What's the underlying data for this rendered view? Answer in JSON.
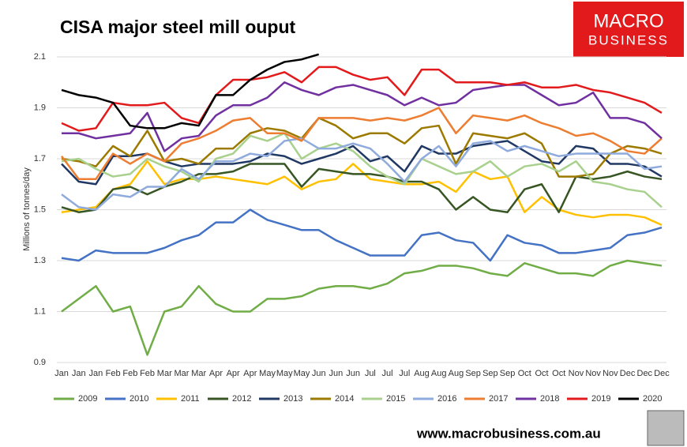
{
  "chart_data": {
    "type": "line",
    "title": "CISA major steel mill ouput",
    "y_label": "Millions of tonnes/day",
    "logo": [
      "MACRO",
      "BUSINESS"
    ],
    "source": "www.macrobusiness.com.au",
    "categories": [
      "Jan",
      "Jan",
      "Jan",
      "Feb",
      "Feb",
      "Feb",
      "Mar",
      "Mar",
      "Mar",
      "Apr",
      "Apr",
      "Apr",
      "May",
      "May",
      "May",
      "Jun",
      "Jun",
      "Jun",
      "Jul",
      "Jul",
      "Jul",
      "Aug",
      "Aug",
      "Aug",
      "Sep",
      "Sep",
      "Sep",
      "Oct",
      "Oct",
      "Oct",
      "Nov",
      "Nov",
      "Nov",
      "Dec",
      "Dec",
      "Dec"
    ],
    "ylim": [
      0.9,
      2.1
    ],
    "yticks": [
      0.9,
      1.1,
      1.3,
      1.5,
      1.7,
      1.9,
      2.1
    ],
    "grid": true,
    "legend": "bottom",
    "series": [
      {
        "name": "2009",
        "color": "#70ad47",
        "values": [
          1.1,
          1.15,
          1.2,
          1.1,
          1.12,
          0.93,
          1.1,
          1.12,
          1.2,
          1.13,
          1.1,
          1.1,
          1.15,
          1.15,
          1.16,
          1.19,
          1.2,
          1.2,
          1.19,
          1.21,
          1.25,
          1.26,
          1.28,
          1.28,
          1.27,
          1.25,
          1.24,
          1.29,
          1.27,
          1.25,
          1.25,
          1.24,
          1.28,
          1.3,
          1.29,
          1.28
        ]
      },
      {
        "name": "2010",
        "color": "#4472c4",
        "values": [
          1.31,
          1.3,
          1.34,
          1.33,
          1.33,
          1.33,
          1.35,
          1.38,
          1.4,
          1.45,
          1.45,
          1.5,
          1.46,
          1.44,
          1.42,
          1.42,
          1.38,
          1.35,
          1.32,
          1.32,
          1.32,
          1.4,
          1.41,
          1.38,
          1.37,
          1.3,
          1.4,
          1.37,
          1.36,
          1.33,
          1.33,
          1.34,
          1.35,
          1.4,
          1.41,
          1.43
        ]
      },
      {
        "name": "2011",
        "color": "#ffc000",
        "values": [
          1.49,
          1.5,
          1.51,
          1.58,
          1.6,
          1.69,
          1.6,
          1.62,
          1.62,
          1.63,
          1.62,
          1.61,
          1.6,
          1.63,
          1.58,
          1.61,
          1.62,
          1.68,
          1.62,
          1.61,
          1.6,
          1.6,
          1.61,
          1.57,
          1.65,
          1.62,
          1.63,
          1.49,
          1.55,
          1.5,
          1.48,
          1.47,
          1.48,
          1.48,
          1.47,
          1.44
        ]
      },
      {
        "name": "2012",
        "color": "#375623",
        "values": [
          1.51,
          1.49,
          1.5,
          1.58,
          1.59,
          1.56,
          1.59,
          1.61,
          1.64,
          1.64,
          1.65,
          1.68,
          1.68,
          1.68,
          1.59,
          1.66,
          1.65,
          1.64,
          1.64,
          1.63,
          1.61,
          1.61,
          1.58,
          1.5,
          1.55,
          1.5,
          1.49,
          1.58,
          1.6,
          1.49,
          1.63,
          1.62,
          1.63,
          1.65,
          1.63,
          1.62
        ]
      },
      {
        "name": "2013",
        "color": "#203864",
        "values": [
          1.68,
          1.61,
          1.6,
          1.71,
          1.71,
          1.72,
          1.69,
          1.67,
          1.68,
          1.68,
          1.68,
          1.69,
          1.72,
          1.71,
          1.68,
          1.7,
          1.72,
          1.75,
          1.69,
          1.71,
          1.65,
          1.75,
          1.72,
          1.72,
          1.75,
          1.76,
          1.77,
          1.73,
          1.69,
          1.68,
          1.75,
          1.74,
          1.68,
          1.68,
          1.67,
          1.63
        ]
      },
      {
        "name": "2014",
        "color": "#9c7a00",
        "values": [
          1.7,
          1.69,
          1.67,
          1.75,
          1.71,
          1.81,
          1.69,
          1.7,
          1.68,
          1.74,
          1.74,
          1.8,
          1.82,
          1.81,
          1.78,
          1.86,
          1.83,
          1.78,
          1.8,
          1.8,
          1.76,
          1.82,
          1.83,
          1.68,
          1.8,
          1.79,
          1.78,
          1.8,
          1.76,
          1.63,
          1.63,
          1.64,
          1.72,
          1.75,
          1.74,
          1.72
        ]
      },
      {
        "name": "2015",
        "color": "#a9d18e",
        "values": [
          1.69,
          1.7,
          1.66,
          1.63,
          1.64,
          1.7,
          1.67,
          1.65,
          1.61,
          1.7,
          1.72,
          1.79,
          1.77,
          1.8,
          1.7,
          1.74,
          1.76,
          1.73,
          1.67,
          1.63,
          1.6,
          1.7,
          1.67,
          1.64,
          1.65,
          1.69,
          1.63,
          1.67,
          1.68,
          1.65,
          1.69,
          1.61,
          1.6,
          1.58,
          1.57,
          1.51
        ]
      },
      {
        "name": "2016",
        "color": "#8faadc",
        "values": [
          1.56,
          1.51,
          1.5,
          1.56,
          1.55,
          1.59,
          1.59,
          1.66,
          1.62,
          1.69,
          1.69,
          1.72,
          1.71,
          1.77,
          1.78,
          1.74,
          1.74,
          1.76,
          1.74,
          1.68,
          1.61,
          1.7,
          1.75,
          1.67,
          1.76,
          1.77,
          1.73,
          1.75,
          1.73,
          1.71,
          1.72,
          1.72,
          1.72,
          1.72,
          1.66,
          1.67
        ]
      },
      {
        "name": "2017",
        "color": "#ed7d31",
        "values": [
          1.71,
          1.62,
          1.62,
          1.72,
          1.68,
          1.72,
          1.69,
          1.76,
          1.78,
          1.81,
          1.85,
          1.86,
          1.8,
          1.8,
          1.77,
          1.86,
          1.86,
          1.86,
          1.85,
          1.86,
          1.85,
          1.87,
          1.9,
          1.8,
          1.87,
          1.86,
          1.85,
          1.87,
          1.84,
          1.82,
          1.79,
          1.8,
          1.77,
          1.73,
          1.72,
          1.78
        ]
      },
      {
        "name": "2018",
        "color": "#7030a0",
        "values": [
          1.8,
          1.8,
          1.78,
          1.79,
          1.8,
          1.88,
          1.73,
          1.78,
          1.79,
          1.87,
          1.91,
          1.91,
          1.94,
          2.0,
          1.97,
          1.95,
          1.98,
          1.99,
          1.97,
          1.95,
          1.91,
          1.94,
          1.91,
          1.92,
          1.97,
          1.98,
          1.99,
          1.99,
          1.95,
          1.91,
          1.92,
          1.96,
          1.86,
          1.86,
          1.84,
          1.78
        ]
      },
      {
        "name": "2019",
        "color": "#e31a1c",
        "values": [
          1.84,
          1.81,
          1.82,
          1.92,
          1.91,
          1.91,
          1.92,
          1.86,
          1.84,
          1.95,
          2.01,
          2.01,
          2.02,
          2.04,
          2.0,
          2.06,
          2.06,
          2.03,
          2.01,
          2.02,
          1.95,
          2.05,
          2.05,
          2.0,
          2.0,
          2.0,
          1.99,
          2.0,
          1.98,
          1.98,
          1.99,
          1.97,
          1.96,
          1.94,
          1.92,
          1.88
        ]
      },
      {
        "name": "2020",
        "color": "#000000",
        "values": [
          1.97,
          1.95,
          1.94,
          1.92,
          1.83,
          1.82,
          1.82,
          1.84,
          1.83,
          1.95,
          1.95,
          2.01,
          2.05,
          2.08,
          2.09,
          2.11,
          null,
          null,
          null,
          null,
          null,
          null,
          null,
          null,
          null,
          null,
          null,
          null,
          null,
          null,
          null,
          null,
          null,
          null,
          null,
          null
        ]
      }
    ]
  }
}
